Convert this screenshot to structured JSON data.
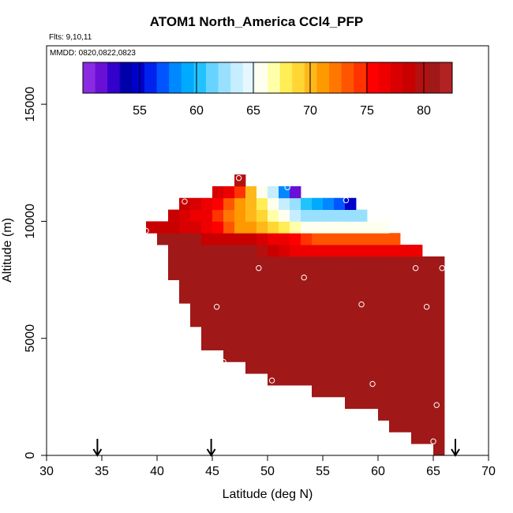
{
  "header": {
    "title": "ATOM1 North_America CCl4_PFP",
    "flights": "Flts: 9,10,11",
    "mmdd": "MMDD: 0820,0822,0823"
  },
  "chart_data": {
    "type": "heatmap",
    "title": "ATOM1 North_America CCl4_PFP",
    "xlabel": "Latitude (deg N)",
    "ylabel": "Altitude (m)",
    "xlim": [
      30,
      70
    ],
    "ylim": [
      0,
      17500
    ],
    "x_ticks": [
      30,
      35,
      40,
      45,
      50,
      55,
      60,
      65,
      70
    ],
    "y_ticks": [
      0,
      5000,
      10000,
      15000
    ],
    "cell_width_deg": 1,
    "cell_height_m": 500,
    "colorbar": {
      "range": [
        50,
        82.5
      ],
      "ticks": [
        55,
        60,
        65,
        70,
        75,
        80
      ],
      "colors": [
        "#8a2be2",
        "#6a0fd6",
        "#3300cc",
        "#0000aa",
        "#0000cc",
        "#0022ee",
        "#0055ff",
        "#0088ff",
        "#00aaff",
        "#22c2ff",
        "#66d4ff",
        "#99e0ff",
        "#c6eeff",
        "#e6f8ff",
        "#fffff0",
        "#ffffaa",
        "#ffee55",
        "#ffd633",
        "#ffb81a",
        "#ff9900",
        "#ff7700",
        "#ff5500",
        "#ff3300",
        "#ff0000",
        "#ee0000",
        "#d80000",
        "#c80000",
        "#b51010",
        "#a01818",
        "#b22222"
      ]
    },
    "rows": [
      {
        "alt": 250,
        "lat_min": 65,
        "lat_max": 66,
        "values": [
          81
        ]
      },
      {
        "alt": 750,
        "lat_min": 63,
        "lat_max": 66,
        "values": [
          81,
          81,
          81
        ]
      },
      {
        "alt": 1250,
        "lat_min": 61,
        "lat_max": 66,
        "values": [
          81,
          81,
          81,
          81,
          81
        ]
      },
      {
        "alt": 1750,
        "lat_min": 60,
        "lat_max": 66,
        "values": [
          81,
          81,
          81,
          81,
          81,
          81
        ]
      },
      {
        "alt": 2250,
        "lat_min": 57,
        "lat_max": 66,
        "values": [
          81,
          81,
          81,
          81,
          81,
          81,
          81,
          81,
          81
        ]
      },
      {
        "alt": 2750,
        "lat_min": 54,
        "lat_max": 66,
        "values": [
          81,
          81,
          81,
          81,
          81,
          81,
          81,
          81,
          81,
          81,
          81,
          81
        ]
      },
      {
        "alt": 3250,
        "lat_min": 50,
        "lat_max": 66,
        "values": [
          81,
          81,
          81,
          81,
          81,
          81,
          81,
          81,
          81,
          81,
          81,
          81,
          81,
          81,
          81,
          81
        ]
      },
      {
        "alt": 3750,
        "lat_min": 48,
        "lat_max": 66,
        "values": [
          81,
          81,
          81,
          81,
          81,
          81,
          81,
          81,
          81,
          81,
          81,
          81,
          81,
          81,
          81,
          81,
          81,
          81
        ]
      },
      {
        "alt": 4250,
        "lat_min": 46,
        "lat_max": 66,
        "values": [
          81,
          81,
          81,
          81,
          81,
          81,
          81,
          81,
          81,
          81,
          81,
          81,
          81,
          81,
          81,
          81,
          81,
          81,
          81,
          81
        ]
      },
      {
        "alt": 4750,
        "lat_min": 44,
        "lat_max": 66,
        "values": [
          81,
          81,
          81,
          81,
          81,
          81,
          81,
          81,
          81,
          81,
          81,
          81,
          81,
          81,
          81,
          81,
          81,
          81,
          81,
          81,
          81,
          81
        ]
      },
      {
        "alt": 5250,
        "lat_min": 44,
        "lat_max": 66,
        "values": [
          81,
          81,
          81,
          81,
          81,
          81,
          81,
          81,
          81,
          81,
          81,
          81,
          81,
          81,
          81,
          81,
          81,
          81,
          81,
          81,
          81,
          81
        ]
      },
      {
        "alt": 5750,
        "lat_min": 43,
        "lat_max": 66,
        "values": [
          81,
          81,
          81,
          81,
          81,
          81,
          81,
          81,
          81,
          81,
          81,
          81,
          81,
          81,
          81,
          81,
          81,
          81,
          81,
          81,
          81,
          81,
          81
        ]
      },
      {
        "alt": 6250,
        "lat_min": 43,
        "lat_max": 66,
        "values": [
          81,
          81,
          81,
          81,
          81,
          81,
          81,
          81,
          81,
          81,
          81,
          81,
          81,
          81,
          81,
          81,
          81,
          81,
          81,
          81,
          81,
          81,
          81
        ]
      },
      {
        "alt": 6750,
        "lat_min": 42,
        "lat_max": 66,
        "values": [
          81,
          81,
          81,
          81,
          81,
          81,
          81,
          81,
          81,
          81,
          81,
          81,
          81,
          81,
          81,
          81,
          81,
          81,
          81,
          81,
          81,
          81,
          81,
          81
        ]
      },
      {
        "alt": 7250,
        "lat_min": 42,
        "lat_max": 66,
        "values": [
          81,
          81,
          81,
          81,
          81,
          81,
          81,
          81,
          81,
          81,
          81,
          81,
          81,
          81,
          81,
          81,
          81,
          81,
          81,
          81,
          81,
          81,
          81,
          81
        ]
      },
      {
        "alt": 7750,
        "lat_min": 41,
        "lat_max": 66,
        "values": [
          81,
          81,
          81,
          81,
          81,
          81,
          81,
          81,
          81,
          81,
          81,
          81,
          81,
          81,
          81,
          81,
          81,
          81,
          81,
          81,
          81,
          81,
          81,
          81,
          81
        ]
      },
      {
        "alt": 8250,
        "lat_min": 41,
        "lat_max": 66,
        "values": [
          81,
          81,
          81,
          81,
          81,
          81,
          81,
          81,
          81,
          81,
          81,
          81,
          81,
          81,
          81,
          81,
          81,
          81,
          81,
          81,
          81,
          81,
          81,
          81,
          81
        ]
      },
      {
        "alt": 8750,
        "lat_min": 41,
        "lat_max": 64,
        "values": [
          81,
          81,
          81,
          81,
          81,
          81,
          81,
          81,
          80,
          79,
          78,
          77,
          76,
          76,
          76,
          76,
          76,
          76,
          76,
          76,
          76,
          76,
          76
        ]
      },
      {
        "alt": 9250,
        "lat_min": 40,
        "lat_max": 62,
        "values": [
          81,
          81,
          81,
          81,
          79,
          79,
          79,
          79,
          79,
          78,
          77,
          76,
          75,
          74,
          73,
          73,
          73,
          73,
          73,
          73,
          73,
          73
        ]
      },
      {
        "alt": 9750,
        "lat_min": 39,
        "lat_max": 61,
        "values": [
          79,
          79,
          79,
          78,
          78,
          77,
          75,
          73,
          71,
          71,
          70,
          69,
          68,
          67,
          66,
          66,
          66,
          66,
          66,
          66,
          66,
          66
        ]
      },
      {
        "alt": 10250,
        "lat_min": 41,
        "lat_max": 59,
        "values": [
          79,
          78,
          77,
          76,
          74,
          72,
          71,
          70,
          69,
          67,
          66,
          64,
          62,
          62,
          62,
          62,
          62,
          62
        ]
      },
      {
        "alt": 10750,
        "lat_min": 42,
        "lat_max": 58,
        "values": [
          79,
          78,
          77,
          75,
          73,
          71,
          70,
          68,
          66,
          64,
          62,
          60,
          59,
          58,
          57,
          55
        ]
      },
      {
        "alt": 11250,
        "lat_min": 45,
        "lat_max": 53,
        "values": [
          78,
          76,
          74,
          70,
          66,
          63,
          58,
          52
        ]
      },
      {
        "alt": 11750,
        "lat_min": 47,
        "lat_max": 48,
        "values": [
          80
        ]
      }
    ],
    "points": [
      {
        "lat": 47.4,
        "alt": 11850
      },
      {
        "lat": 51.8,
        "alt": 11450
      },
      {
        "lat": 42.5,
        "alt": 10850
      },
      {
        "lat": 57.1,
        "alt": 10900
      },
      {
        "lat": 39.0,
        "alt": 9600
      },
      {
        "lat": 49.2,
        "alt": 8000
      },
      {
        "lat": 53.3,
        "alt": 7600
      },
      {
        "lat": 63.4,
        "alt": 8000
      },
      {
        "lat": 65.8,
        "alt": 8000
      },
      {
        "lat": 45.4,
        "alt": 6350
      },
      {
        "lat": 58.5,
        "alt": 6450
      },
      {
        "lat": 64.4,
        "alt": 6350
      },
      {
        "lat": 46.0,
        "alt": 4000
      },
      {
        "lat": 50.4,
        "alt": 3200
      },
      {
        "lat": 59.5,
        "alt": 3050
      },
      {
        "lat": 65.3,
        "alt": 2150
      },
      {
        "lat": 59.2,
        "alt": 1750
      },
      {
        "lat": 65.0,
        "alt": 600
      }
    ],
    "arrows_lat": [
      34.6,
      44.9,
      67.0
    ],
    "colors": {
      "plot_border": "#000000",
      "point": "#ffffff",
      "arrow": "#000000"
    }
  }
}
